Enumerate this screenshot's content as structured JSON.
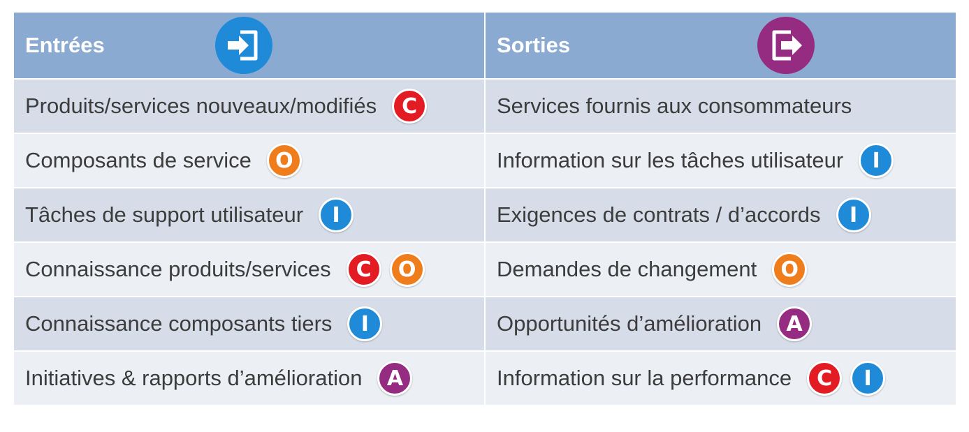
{
  "colors": {
    "header_bg": "#8aaad1",
    "row_dark": "#d6dde9",
    "row_light": "#eceff4",
    "badge_C": "#e31b23",
    "badge_O": "#f07d1c",
    "badge_I": "#1f8ad8",
    "badge_A": "#962c82",
    "icon_in": "#1f8ad8",
    "icon_out": "#962c82"
  },
  "headers": {
    "inputs": {
      "label": "Entrées",
      "icon": "enter-icon"
    },
    "outputs": {
      "label": "Sorties",
      "icon": "exit-icon"
    }
  },
  "rows": [
    {
      "input": {
        "text": "Produits/services nouveaux/modifiés",
        "badges": [
          "C"
        ]
      },
      "output": {
        "text": "Services fournis aux consommateurs",
        "badges": []
      }
    },
    {
      "input": {
        "text": "Composants de service",
        "badges": [
          "O"
        ]
      },
      "output": {
        "text": "Information sur les tâches utilisateur",
        "badges": [
          "I"
        ]
      }
    },
    {
      "input": {
        "text": "Tâches de support utilisateur",
        "badges": [
          "I"
        ]
      },
      "output": {
        "text": "Exigences de contrats / d’accords",
        "badges": [
          "I"
        ]
      }
    },
    {
      "input": {
        "text": "Connaissance produits/services",
        "badges": [
          "C",
          "O"
        ]
      },
      "output": {
        "text": "Demandes de changement",
        "badges": [
          "O"
        ]
      }
    },
    {
      "input": {
        "text": "Connaissance composants tiers",
        "badges": [
          "I"
        ]
      },
      "output": {
        "text": "Opportunités d’amélioration",
        "badges": [
          "A"
        ]
      }
    },
    {
      "input": {
        "text": "Initiatives & rapports d’amélioration",
        "badges": [
          "A"
        ]
      },
      "output": {
        "text": "Information sur la performance",
        "badges": [
          "C",
          "I"
        ]
      }
    }
  ]
}
